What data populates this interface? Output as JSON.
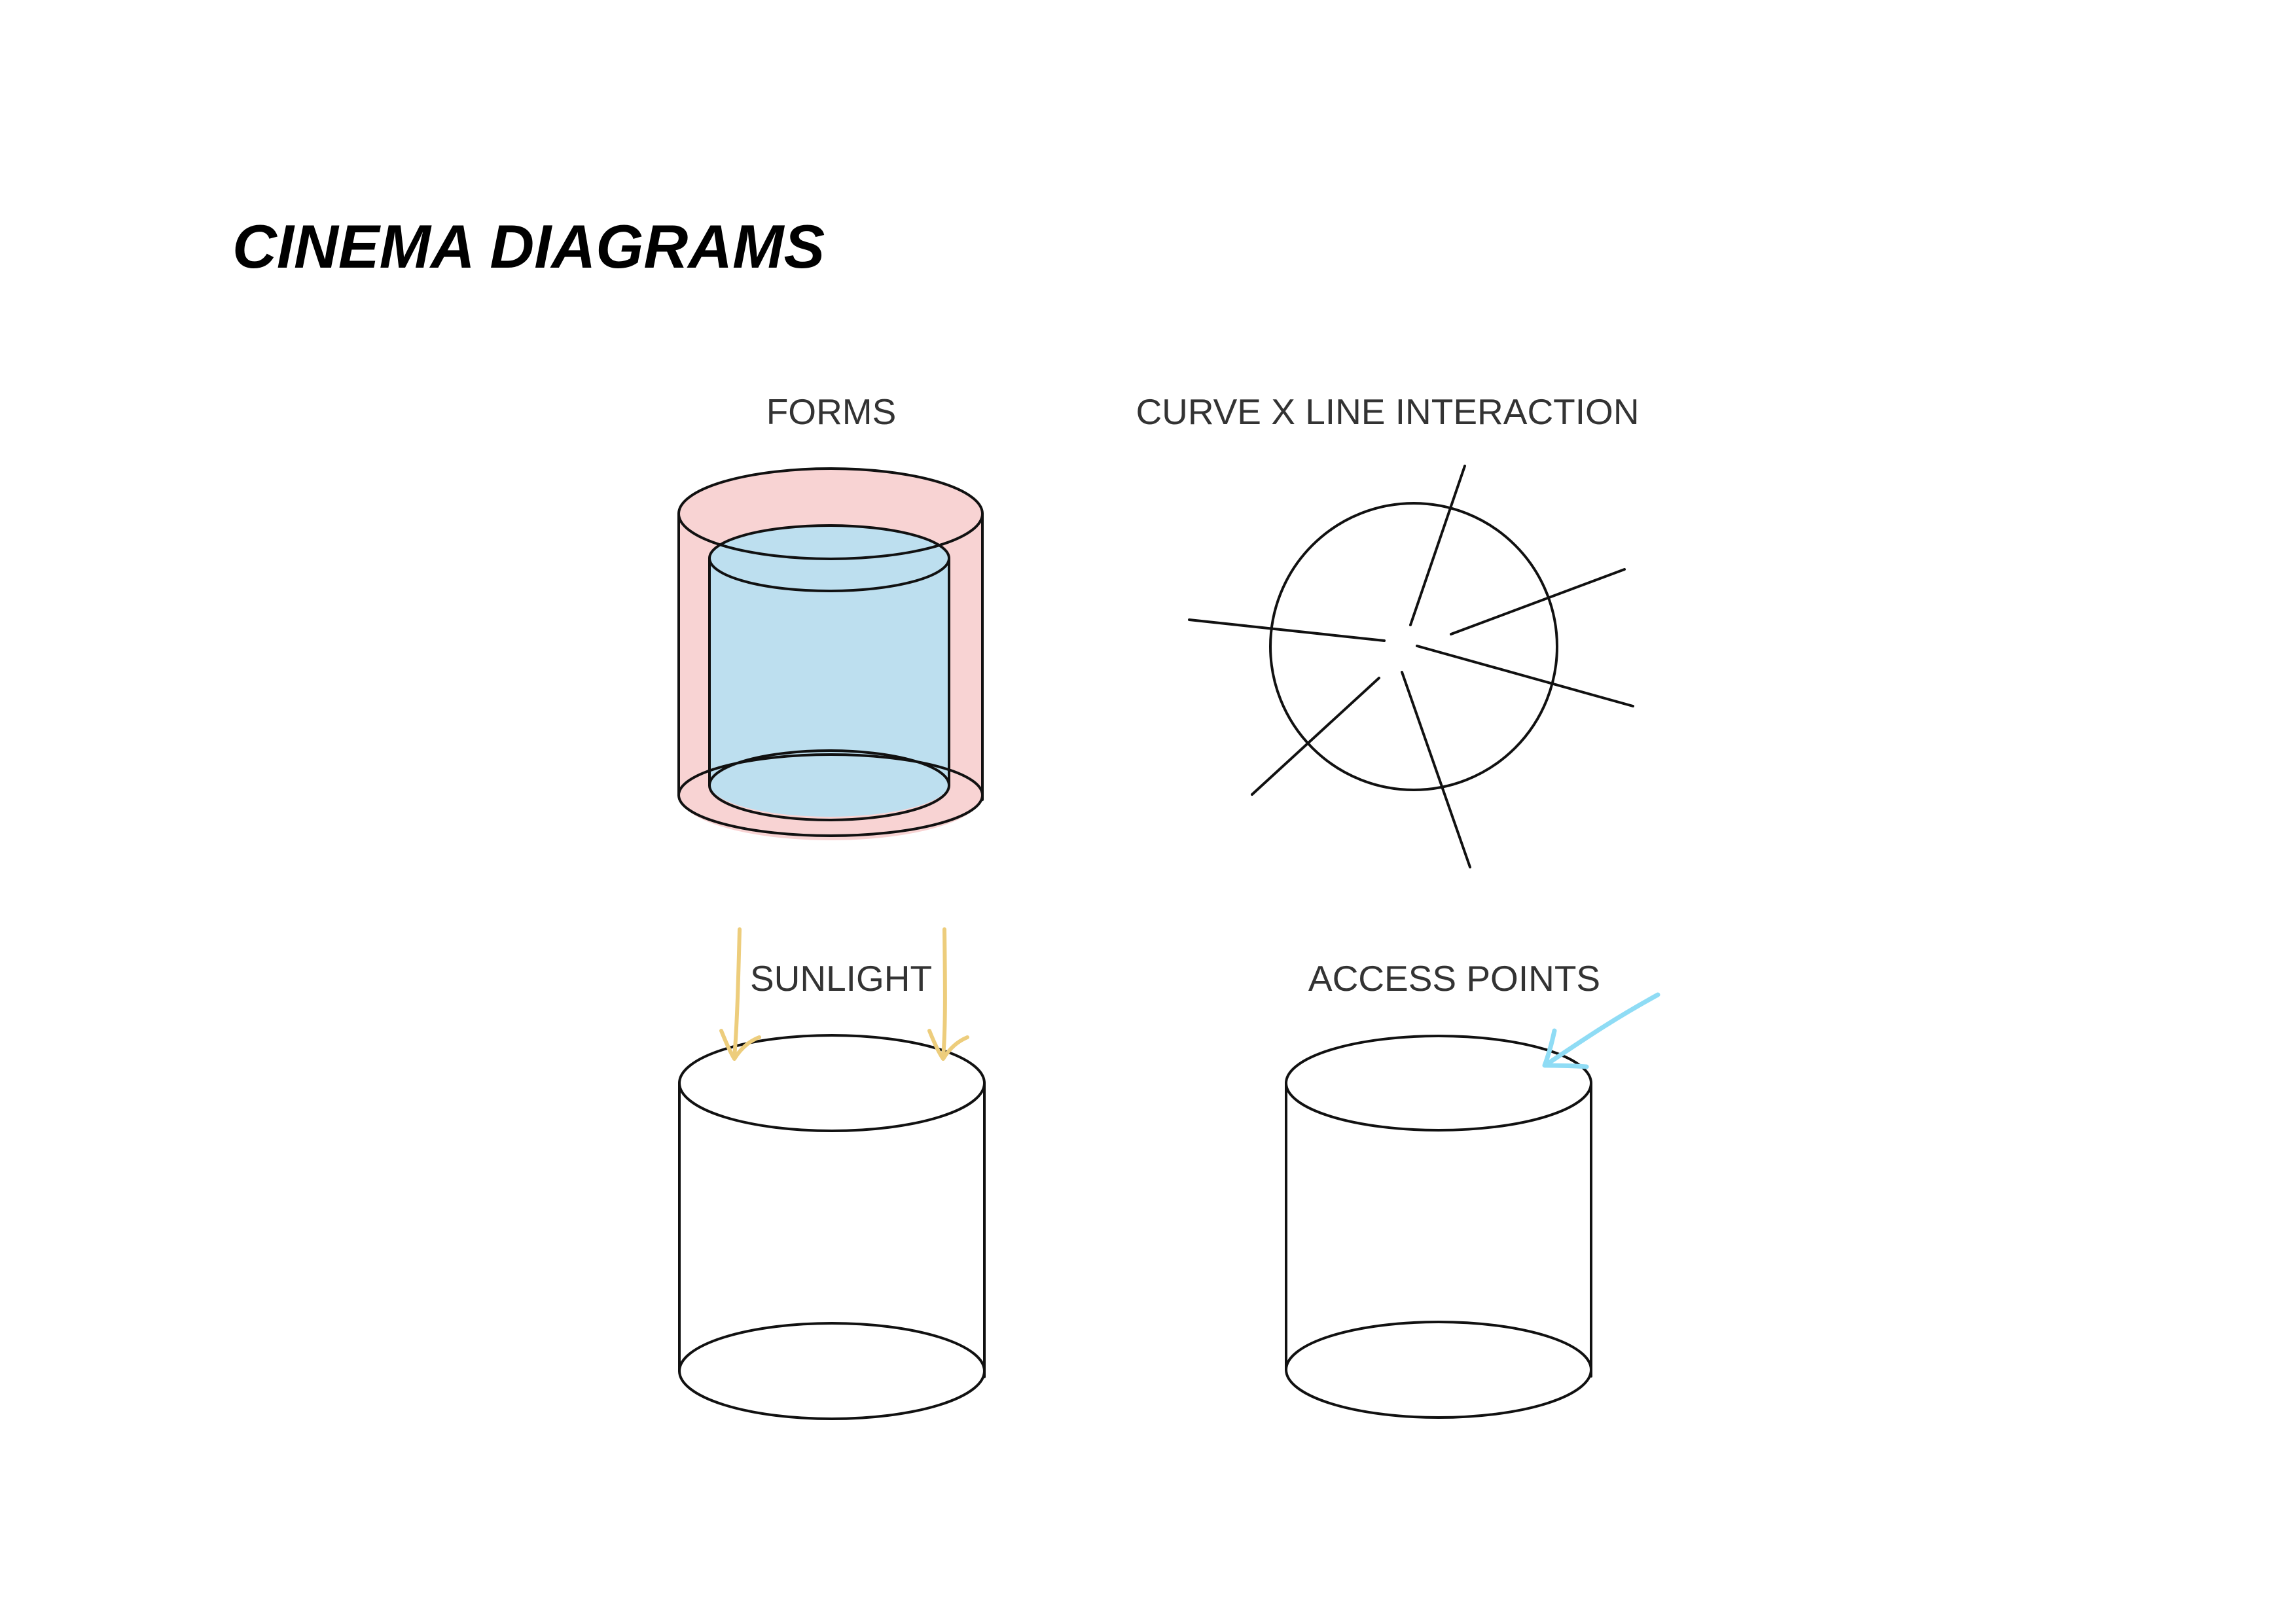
{
  "title": "CINEMA DIAGRAMS",
  "labels": {
    "forms": "FORMS",
    "curve_line": "CURVE X LINE INTERACTION",
    "sunlight": "SUNLIGHT",
    "access_points": "ACCESS POINTS"
  },
  "colors": {
    "outer_volume": "#f8d3d3",
    "inner_volume": "#bddfef",
    "sunlight_arrow": "#edcd7c",
    "access_arrow": "#8fdcf5",
    "stroke": "#111111"
  }
}
